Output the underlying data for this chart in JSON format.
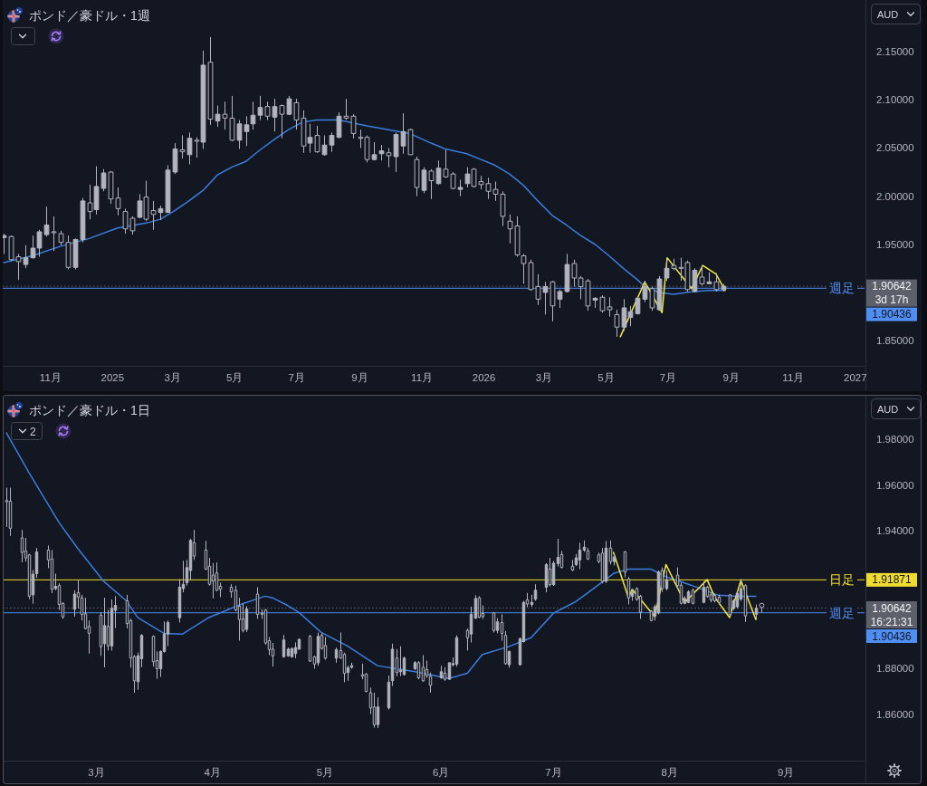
{
  "chart_data": [
    {
      "type": "candlestick",
      "title": "ポンド／豪ドル・1週",
      "ylabel": "AUD",
      "color": "#b2b5be",
      "x": [
        "2024-09-16",
        "2024-09-23",
        "2024-09-30",
        "2024-10-07",
        "2024-10-14",
        "2024-10-21",
        "2024-10-28",
        "2024-11-04",
        "2024-11-11",
        "2024-11-18",
        "2024-11-25",
        "2024-12-02",
        "2024-12-09",
        "2024-12-16",
        "2024-12-23",
        "2024-12-30",
        "2025-01-06",
        "2025-01-13",
        "2025-01-20",
        "2025-01-27",
        "2025-02-03",
        "2025-02-10",
        "2025-02-17",
        "2025-02-24",
        "2025-03-03",
        "2025-03-10",
        "2025-03-17",
        "2025-03-24",
        "2025-03-31",
        "2025-04-07",
        "2025-04-14",
        "2025-04-21",
        "2025-04-28",
        "2025-05-05",
        "2025-05-12",
        "2025-05-19",
        "2025-05-26",
        "2025-06-02",
        "2025-06-09",
        "2025-06-16",
        "2025-06-23",
        "2025-06-30",
        "2025-07-07",
        "2025-07-14",
        "2025-07-21",
        "2025-07-28",
        "2025-08-04",
        "2025-08-11",
        "2025-08-18",
        "2025-08-25",
        "2025-09-01",
        "2025-09-08",
        "2025-09-15",
        "2025-09-22",
        "2025-09-29",
        "2025-10-06",
        "2025-10-13",
        "2025-10-20",
        "2025-10-27",
        "2025-11-03",
        "2025-11-10",
        "2025-11-17",
        "2025-11-24",
        "2025-12-01",
        "2025-12-08",
        "2025-12-15",
        "2025-12-22",
        "2025-12-29",
        "2026-01-05",
        "2026-01-12",
        "2026-01-19",
        "2026-01-26",
        "2026-02-02",
        "2026-02-09",
        "2026-02-16",
        "2026-02-23",
        "2026-03-02",
        "2026-03-09",
        "2026-03-16",
        "2026-03-23",
        "2026-03-30",
        "2026-04-06",
        "2026-04-13",
        "2026-04-20",
        "2026-04-27",
        "2026-05-04",
        "2026-05-11",
        "2026-05-18",
        "2026-05-25",
        "2026-06-01",
        "2026-06-08",
        "2026-06-15",
        "2026-06-22",
        "2026-06-29",
        "2026-07-06",
        "2026-07-13",
        "2026-07-20",
        "2026-07-27",
        "2026-08-03",
        "2026-08-10",
        "2026-08-17",
        "2026-08-24"
      ],
      "ohlc": [
        [
          1.957,
          1.961,
          1.94,
          1.959
        ],
        [
          1.958,
          1.959,
          1.933,
          1.934
        ],
        [
          1.937,
          1.94,
          1.913,
          1.932
        ],
        [
          1.929,
          1.949,
          1.925,
          1.936
        ],
        [
          1.936,
          1.959,
          1.935,
          1.946
        ],
        [
          1.946,
          1.965,
          1.937,
          1.963
        ],
        [
          1.96,
          1.989,
          1.958,
          1.97
        ],
        [
          1.963,
          1.979,
          1.943,
          1.962
        ],
        [
          1.961,
          1.964,
          1.949,
          1.952
        ],
        [
          1.952,
          1.959,
          1.924,
          1.926
        ],
        [
          1.926,
          1.956,
          1.924,
          1.955
        ],
        [
          1.955,
          1.998,
          1.952,
          1.995
        ],
        [
          1.993,
          2.012,
          1.976,
          1.984
        ],
        [
          1.986,
          2.031,
          1.981,
          2.01
        ],
        [
          2.008,
          2.028,
          2.005,
          2.024
        ],
        [
          2.025,
          2.026,
          1.992,
          1.997
        ],
        [
          1.998,
          2.009,
          1.98,
          1.987
        ],
        [
          1.984,
          1.987,
          1.961,
          1.966
        ],
        [
          1.977,
          1.979,
          1.96,
          1.964
        ],
        [
          1.978,
          2.002,
          1.977,
          1.995
        ],
        [
          1.999,
          2.016,
          1.974,
          1.976
        ],
        [
          1.985,
          1.995,
          1.965,
          1.981
        ],
        [
          1.983,
          1.99,
          1.975,
          1.987
        ],
        [
          1.983,
          2.032,
          1.983,
          2.027
        ],
        [
          2.025,
          2.055,
          2.023,
          2.049
        ],
        [
          2.048,
          2.063,
          2.039,
          2.046
        ],
        [
          2.043,
          2.066,
          2.033,
          2.06
        ],
        [
          2.058,
          2.061,
          2.04,
          2.057
        ],
        [
          2.056,
          2.151,
          2.049,
          2.136
        ],
        [
          2.139,
          2.165,
          2.074,
          2.08
        ],
        [
          2.078,
          2.094,
          2.072,
          2.085
        ],
        [
          2.085,
          2.098,
          2.069,
          2.081
        ],
        [
          2.081,
          2.104,
          2.057,
          2.058
        ],
        [
          2.058,
          2.079,
          2.049,
          2.075
        ],
        [
          2.067,
          2.083,
          2.052,
          2.074
        ],
        [
          2.075,
          2.098,
          2.069,
          2.084
        ],
        [
          2.084,
          2.104,
          2.079,
          2.092
        ],
        [
          2.093,
          2.098,
          2.079,
          2.083
        ],
        [
          2.082,
          2.101,
          2.067,
          2.093
        ],
        [
          2.094,
          2.095,
          2.06,
          2.085
        ],
        [
          2.085,
          2.104,
          2.084,
          2.101
        ],
        [
          2.097,
          2.101,
          2.069,
          2.079
        ],
        [
          2.081,
          2.089,
          2.045,
          2.052
        ],
        [
          2.055,
          2.075,
          2.045,
          2.061
        ],
        [
          2.063,
          2.073,
          2.045,
          2.046
        ],
        [
          2.043,
          2.063,
          2.042,
          2.053
        ],
        [
          2.053,
          2.066,
          2.046,
          2.063
        ],
        [
          2.061,
          2.087,
          2.06,
          2.083
        ],
        [
          2.083,
          2.101,
          2.079,
          2.081
        ],
        [
          2.083,
          2.085,
          2.06,
          2.065
        ],
        [
          2.061,
          2.069,
          2.05,
          2.06
        ],
        [
          2.061,
          2.063,
          2.035,
          2.038
        ],
        [
          2.038,
          2.056,
          2.037,
          2.043
        ],
        [
          2.044,
          2.053,
          2.037,
          2.047
        ],
        [
          2.045,
          2.05,
          2.03,
          2.042
        ],
        [
          2.041,
          2.066,
          2.025,
          2.064
        ],
        [
          2.052,
          2.086,
          2.044,
          2.067
        ],
        [
          2.069,
          2.07,
          2.043,
          2.043
        ],
        [
          2.038,
          2.041,
          2.0,
          2.009
        ],
        [
          2.006,
          2.03,
          2.003,
          2.027
        ],
        [
          2.026,
          2.028,
          1.997,
          2.016
        ],
        [
          2.013,
          2.037,
          2.012,
          2.029
        ],
        [
          2.028,
          2.048,
          2.019,
          2.02
        ],
        [
          2.023,
          2.025,
          2.007,
          2.008
        ],
        [
          2.007,
          2.017,
          2.0,
          2.009
        ],
        [
          2.013,
          2.03,
          2.009,
          2.023
        ],
        [
          2.028,
          2.029,
          2.009,
          2.01
        ],
        [
          2.015,
          2.021,
          2.007,
          2.012
        ],
        [
          2.013,
          2.019,
          1.997,
          2.005
        ],
        [
          2.007,
          2.015,
          1.995,
          2.002
        ],
        [
          2.002,
          2.005,
          1.969,
          1.979
        ],
        [
          1.974,
          1.981,
          1.951,
          1.966
        ],
        [
          1.969,
          1.979,
          1.937,
          1.939
        ],
        [
          1.938,
          1.94,
          1.909,
          1.93
        ],
        [
          1.931,
          1.934,
          1.902,
          1.903
        ],
        [
          1.906,
          1.919,
          1.887,
          1.893
        ],
        [
          1.9,
          1.911,
          1.877,
          1.906
        ],
        [
          1.911,
          1.912,
          1.87,
          1.886
        ],
        [
          1.893,
          1.903,
          1.884,
          1.901
        ],
        [
          1.901,
          1.94,
          1.9,
          1.929
        ],
        [
          1.93,
          1.934,
          1.906,
          1.915
        ],
        [
          1.915,
          1.917,
          1.893,
          1.906
        ],
        [
          1.912,
          1.914,
          1.881,
          1.886
        ],
        [
          1.892,
          1.895,
          1.884,
          1.894
        ],
        [
          1.895,
          1.897,
          1.879,
          1.881
        ],
        [
          1.885,
          1.895,
          1.875,
          1.882
        ],
        [
          1.877,
          1.882,
          1.854,
          1.864
        ],
        [
          1.864,
          1.893,
          1.86,
          1.884
        ],
        [
          1.874,
          1.886,
          1.865,
          1.88
        ],
        [
          1.878,
          1.895,
          1.877,
          1.894
        ],
        [
          1.893,
          1.912,
          1.89,
          1.906
        ],
        [
          1.904,
          1.906,
          1.881,
          1.884
        ],
        [
          1.882,
          1.917,
          1.881,
          1.914
        ],
        [
          1.915,
          1.934,
          1.912,
          1.925
        ],
        [
          1.928,
          1.935,
          1.923,
          1.925
        ],
        [
          1.926,
          1.936,
          1.912,
          1.925
        ],
        [
          1.931,
          1.933,
          1.901,
          1.903
        ],
        [
          1.901,
          1.925,
          1.9,
          1.923
        ],
        [
          1.916,
          1.928,
          1.907,
          1.909
        ],
        [
          1.909,
          1.921,
          1.909,
          1.911
        ],
        [
          1.911,
          1.92,
          1.901,
          1.903
        ],
        [
          1.903,
          1.909,
          1.901,
          1.90642
        ]
      ],
      "series": [
        {
          "type": "line",
          "color": "#3b7ddd",
          "x": [
            "2024-09-16",
            "2024-10-14",
            "2024-11-11",
            "2024-12-09",
            "2025-01-06",
            "2025-02-03",
            "2025-02-17",
            "2025-03-03",
            "2025-03-17",
            "2025-03-31",
            "2025-04-14",
            "2025-04-28",
            "2025-05-12",
            "2025-05-26",
            "2025-06-09",
            "2025-06-23",
            "2025-07-07",
            "2025-07-21",
            "2025-08-11",
            "2025-08-25",
            "2025-09-08",
            "2025-09-29",
            "2025-10-20",
            "2025-11-10",
            "2025-11-24",
            "2025-12-15",
            "2025-12-29",
            "2026-01-12",
            "2026-01-26",
            "2026-02-09",
            "2026-02-23",
            "2026-03-09",
            "2026-03-23",
            "2026-04-06",
            "2026-04-20",
            "2026-05-04",
            "2026-05-18",
            "2026-06-01",
            "2026-06-08",
            "2026-06-22",
            "2026-07-06",
            "2026-07-27",
            "2026-08-10",
            "2026-08-24"
          ],
          "values": [
            1.931,
            1.938,
            1.948,
            1.956,
            1.967,
            1.972,
            1.976,
            1.985,
            1.995,
            2.006,
            2.022,
            2.03,
            2.036,
            2.048,
            2.059,
            2.069,
            2.077,
            2.079,
            2.079,
            2.076,
            2.073,
            2.069,
            2.065,
            2.055,
            2.049,
            2.044,
            2.038,
            2.032,
            2.023,
            2.011,
            1.995,
            1.98,
            1.97,
            1.959,
            1.95,
            1.938,
            1.925,
            1.913,
            1.906,
            1.9,
            1.898,
            1.901,
            1.902,
            1.902
          ]
        },
        {
          "type": "line",
          "color": "#f5ea3b",
          "x": [
            "2026-05-15",
            "2026-06-08",
            "2026-06-25",
            "2026-06-30",
            "2026-07-24",
            "2026-08-04",
            "2026-08-17",
            "2026-08-26"
          ],
          "values": [
            1.854,
            1.911,
            1.879,
            1.936,
            1.904,
            1.928,
            1.919,
            1.902
          ]
        }
      ],
      "xlim": [
        "2024-09-15",
        "2027-01-10"
      ],
      "xticks": [
        {
          "value": "2024-11-01",
          "label": "11月"
        },
        {
          "value": "2025-01-01",
          "label": "2025"
        },
        {
          "value": "2025-03-01",
          "label": "3月"
        },
        {
          "value": "2025-05-01",
          "label": "5月"
        },
        {
          "value": "2025-07-01",
          "label": "7月"
        },
        {
          "value": "2025-09-01",
          "label": "9月"
        },
        {
          "value": "2025-11-01",
          "label": "11月"
        },
        {
          "value": "2026-01-01",
          "label": "2026"
        },
        {
          "value": "2026-03-01",
          "label": "3月"
        },
        {
          "value": "2026-05-01",
          "label": "5月"
        },
        {
          "value": "2026-07-01",
          "label": "7月"
        },
        {
          "value": "2026-09-01",
          "label": "9月"
        },
        {
          "value": "2026-11-01",
          "label": "11月"
        },
        {
          "value": "2027-01-01",
          "label": "2027"
        }
      ],
      "ylim": [
        1.8238,
        2.2036
      ],
      "yticks": [
        {
          "value": 1.85,
          "label": "1.85000"
        },
        {
          "value": 1.95,
          "label": "1.95000"
        },
        {
          "value": 2.0,
          "label": "2.00000"
        },
        {
          "value": 2.05,
          "label": "2.05000"
        },
        {
          "value": 2.1,
          "label": "2.10000"
        },
        {
          "value": 2.15,
          "label": "2.15000"
        }
      ],
      "ref_lines": [
        {
          "axis": "y",
          "value": 1.90642,
          "color": "#5d606b",
          "line_style": "dotted"
        },
        {
          "axis": "y",
          "value": 1.90436,
          "label": "週足",
          "color": "#4f8ef2"
        }
      ],
      "annotations": [
        "1.90642",
        "1.90436",
        "3d 17h"
      ]
    },
    {
      "type": "candlestick",
      "title": "ポンド／豪ドル・1日",
      "ylabel": "AUD",
      "color": "#b2b5be",
      "x": [
        "2026-02-05",
        "2026-02-06",
        "2026-02-09",
        "2026-02-10",
        "2026-02-11",
        "2026-02-12",
        "2026-02-13",
        "2026-02-16",
        "2026-02-17",
        "2026-02-18",
        "2026-02-19",
        "2026-02-20",
        "2026-02-23",
        "2026-02-24",
        "2026-02-25",
        "2026-02-26",
        "2026-02-27",
        "2026-03-02",
        "2026-03-03",
        "2026-03-04",
        "2026-03-05",
        "2026-03-06",
        "2026-03-09",
        "2026-03-10",
        "2026-03-11",
        "2026-03-12",
        "2026-03-13",
        "2026-03-16",
        "2026-03-17",
        "2026-03-18",
        "2026-03-19",
        "2026-03-20",
        "2026-03-23",
        "2026-03-24",
        "2026-03-25",
        "2026-03-26",
        "2026-03-27",
        "2026-03-30",
        "2026-03-31",
        "2026-04-01",
        "2026-04-02",
        "2026-04-03",
        "2026-04-06",
        "2026-04-07",
        "2026-04-08",
        "2026-04-09",
        "2026-04-10",
        "2026-04-13",
        "2026-04-14",
        "2026-04-15",
        "2026-04-16",
        "2026-04-17",
        "2026-04-20",
        "2026-04-21",
        "2026-04-22",
        "2026-04-23",
        "2026-04-24",
        "2026-04-27",
        "2026-04-28",
        "2026-04-29",
        "2026-04-30",
        "2026-05-01",
        "2026-05-04",
        "2026-05-05",
        "2026-05-06",
        "2026-05-07",
        "2026-05-08",
        "2026-05-11",
        "2026-05-12",
        "2026-05-13",
        "2026-05-14",
        "2026-05-15",
        "2026-05-18",
        "2026-05-19",
        "2026-05-20",
        "2026-05-21",
        "2026-05-22",
        "2026-05-25",
        "2026-05-26",
        "2026-05-27",
        "2026-05-28",
        "2026-05-29",
        "2026-06-01",
        "2026-06-02",
        "2026-06-03",
        "2026-06-04",
        "2026-06-05",
        "2026-06-08",
        "2026-06-09",
        "2026-06-10",
        "2026-06-11",
        "2026-06-12",
        "2026-06-15",
        "2026-06-16",
        "2026-06-17",
        "2026-06-18",
        "2026-06-19",
        "2026-06-22",
        "2026-06-23",
        "2026-06-24",
        "2026-06-25",
        "2026-06-26",
        "2026-06-29",
        "2026-06-30",
        "2026-07-01",
        "2026-07-02",
        "2026-07-03",
        "2026-07-06",
        "2026-07-07",
        "2026-07-08",
        "2026-07-09",
        "2026-07-10",
        "2026-07-13",
        "2026-07-14",
        "2026-07-15",
        "2026-07-16",
        "2026-07-17",
        "2026-07-20",
        "2026-07-21",
        "2026-07-22",
        "2026-07-23",
        "2026-07-24",
        "2026-07-27",
        "2026-07-28",
        "2026-07-29",
        "2026-07-30",
        "2026-07-31",
        "2026-08-03",
        "2026-08-04",
        "2026-08-05",
        "2026-08-06",
        "2026-08-07",
        "2026-08-10",
        "2026-08-11",
        "2026-08-12",
        "2026-08-13",
        "2026-08-14",
        "2026-08-17",
        "2026-08-18",
        "2026-08-19",
        "2026-08-20",
        "2026-08-21",
        "2026-08-24"
      ],
      "ohlc": [
        [
          1.9533,
          1.9589,
          1.9418,
          1.9528
        ],
        [
          1.953,
          1.9589,
          1.9379,
          1.9412
        ],
        [
          1.937,
          1.9405,
          1.9264,
          1.9307
        ],
        [
          1.9313,
          1.937,
          1.9267,
          1.9283
        ],
        [
          1.9296,
          1.93,
          1.9103,
          1.9116
        ],
        [
          1.9122,
          1.923,
          1.9083,
          1.9212
        ],
        [
          1.9214,
          1.9326,
          1.9195,
          1.9309
        ],
        [
          1.9317,
          1.9337,
          1.9238,
          1.9274
        ],
        [
          1.9278,
          1.9317,
          1.9129,
          1.9146
        ],
        [
          1.9149,
          1.9214,
          1.9142,
          1.9159
        ],
        [
          1.9162,
          1.9172,
          1.9056,
          1.908
        ],
        [
          1.9085,
          1.9089,
          1.9017,
          1.9026
        ],
        [
          1.9059,
          1.9142,
          1.9027,
          1.9125
        ],
        [
          1.9132,
          1.9188,
          1.9063,
          1.9112
        ],
        [
          1.9109,
          1.9122,
          1.901,
          1.9037
        ],
        [
          1.9039,
          1.9109,
          1.8971,
          1.8975
        ],
        [
          1.8984,
          1.901,
          1.8866,
          1.8954
        ],
        [
          1.9033,
          1.9046,
          1.8856,
          1.8896
        ],
        [
          1.8909,
          1.9109,
          1.8806,
          1.8988
        ],
        [
          1.8984,
          1.9056,
          1.8879,
          1.8899
        ],
        [
          1.8899,
          1.9102,
          1.8879,
          1.9063
        ],
        [
          1.9054,
          1.9116,
          1.8977,
          1.9076
        ],
        [
          1.9096,
          1.9122,
          1.8975,
          1.8997
        ],
        [
          1.901,
          1.9017,
          1.8804,
          1.8846
        ],
        [
          1.8853,
          1.8859,
          1.8695,
          1.8747
        ],
        [
          1.8743,
          1.887,
          1.8708,
          1.8856
        ],
        [
          1.8843,
          1.8951,
          1.8806,
          1.8945
        ],
        [
          1.8941,
          1.8945,
          1.8809,
          1.883
        ],
        [
          1.8835,
          1.8875,
          1.8756,
          1.88
        ],
        [
          1.88,
          1.8879,
          1.8764,
          1.8875
        ],
        [
          1.8875,
          1.9006,
          1.887,
          1.8951
        ],
        [
          1.8951,
          1.901,
          1.8898,
          1.9001
        ],
        [
          1.9022,
          1.9191,
          1.9001,
          1.9155
        ],
        [
          1.9149,
          1.927,
          1.9133,
          1.9168
        ],
        [
          1.9175,
          1.9274,
          1.9162,
          1.9241
        ],
        [
          1.9228,
          1.9366,
          1.9188,
          1.9359
        ],
        [
          1.9349,
          1.9405,
          1.9274,
          1.9291
        ],
        [
          1.9317,
          1.9357,
          1.923,
          1.9234
        ],
        [
          1.9247,
          1.9283,
          1.9162,
          1.9168
        ],
        [
          1.9208,
          1.926,
          1.9106,
          1.9182
        ],
        [
          1.9217,
          1.9263,
          1.9138,
          1.9142
        ],
        [
          1.9159,
          1.9175,
          1.9112,
          1.9146
        ],
        [
          1.9155,
          1.9168,
          1.9109,
          1.9135
        ],
        [
          1.9142,
          1.9162,
          1.905,
          1.9056
        ],
        [
          1.9072,
          1.9109,
          1.8922,
          1.9014
        ],
        [
          1.9017,
          1.9083,
          1.8958,
          1.8967
        ],
        [
          1.8971,
          1.9072,
          1.896,
          1.906
        ],
        [
          1.9125,
          1.9155,
          1.9017,
          1.9037
        ],
        [
          1.9041,
          1.9059,
          1.9017,
          1.9039
        ],
        [
          1.9056,
          1.9059,
          1.8905,
          1.8912
        ],
        [
          1.8922,
          1.8938,
          1.8859,
          1.8883
        ],
        [
          1.8885,
          1.8912,
          1.8809,
          1.8856
        ],
        [
          1.8852,
          1.8947,
          1.8848,
          1.8925
        ],
        [
          1.8856,
          1.8892,
          1.8852,
          1.8885
        ],
        [
          1.8852,
          1.8892,
          1.8848,
          1.8888
        ],
        [
          1.8866,
          1.8914,
          1.8846,
          1.8892
        ],
        [
          1.8885,
          1.8931,
          1.8883,
          1.8928
        ],
        [
          1.8942,
          1.8947,
          1.883,
          1.8833
        ],
        [
          1.8852,
          1.8856,
          1.88,
          1.882
        ],
        [
          1.8826,
          1.8958,
          1.8813,
          1.8941
        ],
        [
          1.8945,
          1.8954,
          1.8883,
          1.8888
        ],
        [
          1.8901,
          1.8938,
          1.8839,
          1.8846
        ],
        [
          1.8846,
          1.8892,
          1.8826,
          1.8883
        ],
        [
          1.8879,
          1.8958,
          1.8843,
          1.8846
        ],
        [
          1.8862,
          1.887,
          1.8741,
          1.878
        ],
        [
          1.8783,
          1.8813,
          1.8747,
          1.8804
        ],
        [
          1.8806,
          1.8826,
          1.88,
          1.8813
        ],
        [
          1.8774,
          1.8822,
          1.8754,
          1.8767
        ],
        [
          1.8777,
          1.878,
          1.8697,
          1.8701
        ],
        [
          1.8695,
          1.8717,
          1.8602,
          1.8629
        ],
        [
          1.8633,
          1.8695,
          1.8543,
          1.8556
        ],
        [
          1.8556,
          1.8675,
          1.8541,
          1.8633
        ],
        [
          1.8629,
          1.877,
          1.8622,
          1.8741
        ],
        [
          1.8747,
          1.8909,
          1.8725,
          1.8885
        ],
        [
          1.8846,
          1.8885,
          1.8767,
          1.8783
        ],
        [
          1.8787,
          1.8898,
          1.8767,
          1.8793
        ],
        [
          1.8774,
          1.8853,
          1.877,
          1.8846
        ],
        [
          1.88,
          1.8833,
          1.8793,
          1.8826
        ],
        [
          1.8826,
          1.8833,
          1.8754,
          1.876
        ],
        [
          1.8806,
          1.8859,
          1.8743,
          1.8747
        ],
        [
          1.8796,
          1.8835,
          1.876,
          1.877
        ],
        [
          1.8767,
          1.8783,
          1.8695,
          1.8727
        ],
        [
          1.876,
          1.8813,
          1.8756,
          1.8787
        ],
        [
          1.878,
          1.8806,
          1.8747,
          1.8754
        ],
        [
          1.8754,
          1.8826,
          1.8751,
          1.8826
        ],
        [
          1.8817,
          1.8849,
          1.8809,
          1.8822
        ],
        [
          1.882,
          1.8945,
          1.8809,
          1.8935
        ],
        [
          1.8967,
          1.8975,
          1.8879,
          1.8935
        ],
        [
          1.8951,
          1.907,
          1.8914,
          1.9037
        ],
        [
          1.902,
          1.912,
          1.9017,
          1.9106
        ],
        [
          1.9109,
          1.9116,
          1.902,
          1.9024
        ],
        [
          1.904,
          1.9076,
          1.9017,
          1.9028
        ],
        [
          1.9043,
          1.9046,
          1.8958,
          1.8967
        ],
        [
          1.8967,
          1.902,
          1.8954,
          1.9004
        ],
        [
          1.9001,
          1.9037,
          1.8922,
          1.8954
        ],
        [
          1.8945,
          1.8964,
          1.8817,
          1.8822
        ],
        [
          1.8817,
          1.8879,
          1.8804,
          1.8875
        ],
        [
          1.8817,
          1.8935,
          1.8813,
          1.8931
        ],
        [
          1.8918,
          1.9096,
          1.8914,
          1.9089
        ],
        [
          1.91,
          1.913,
          1.9068,
          1.9082
        ],
        [
          1.908,
          1.9122,
          1.907,
          1.9089
        ],
        [
          1.9103,
          1.9168,
          1.9096,
          1.9142
        ],
        [
          1.9155,
          1.926,
          1.9133,
          1.9254
        ],
        [
          1.9234,
          1.9283,
          1.9159,
          1.9166
        ],
        [
          1.9166,
          1.927,
          1.9161,
          1.926
        ],
        [
          1.9258,
          1.9366,
          1.9245,
          1.9285
        ],
        [
          1.9298,
          1.9313,
          1.9238,
          1.9241
        ],
        [
          1.9247,
          1.9274,
          1.9225,
          1.923
        ],
        [
          1.9254,
          1.93,
          1.9247,
          1.9283
        ],
        [
          1.9274,
          1.9349,
          1.9234,
          1.9317
        ],
        [
          1.9317,
          1.9359,
          1.9309,
          1.933
        ],
        [
          1.9313,
          1.9326,
          1.9274,
          1.9278
        ],
        [
          1.9296,
          1.9306,
          1.926,
          1.9267
        ],
        [
          1.9304,
          1.9326,
          1.9172,
          1.9181
        ],
        [
          1.9181,
          1.9356,
          1.9174,
          1.9326
        ],
        [
          1.9326,
          1.9359,
          1.9254,
          1.9267
        ],
        [
          1.9267,
          1.93,
          1.925,
          1.9287
        ],
        [
          1.9309,
          1.9313,
          1.9198,
          1.9221
        ],
        [
          1.9191,
          1.9199,
          1.908,
          1.9109
        ],
        [
          1.9116,
          1.9149,
          1.9096,
          1.9135
        ],
        [
          1.9149,
          1.9155,
          1.9096,
          1.9102
        ],
        [
          1.9116,
          1.9122,
          1.9017,
          1.9046
        ],
        [
          1.905,
          1.9056,
          1.9006,
          1.901
        ],
        [
          1.903,
          1.908,
          1.901,
          1.907
        ],
        [
          1.9043,
          1.9228,
          1.9037,
          1.9221
        ],
        [
          1.9228,
          1.9241,
          1.9135,
          1.9149
        ],
        [
          1.9149,
          1.9228,
          1.9142,
          1.9188
        ],
        [
          1.9208,
          1.9241,
          1.9149,
          1.9162
        ],
        [
          1.9164,
          1.9175,
          1.908,
          1.9085
        ],
        [
          1.9085,
          1.9116,
          1.908,
          1.9106
        ],
        [
          1.9089,
          1.9142,
          1.9085,
          1.9135
        ],
        [
          1.9142,
          1.9149,
          1.908,
          1.9085
        ],
        [
          1.9089,
          1.9181,
          1.9085,
          1.9155
        ],
        [
          1.9155,
          1.9162,
          1.9109,
          1.9116
        ],
        [
          1.9122,
          1.9133,
          1.9089,
          1.9099
        ],
        [
          1.9119,
          1.9125,
          1.9089,
          1.9096
        ],
        [
          1.9112,
          1.9122,
          1.908,
          1.9089
        ],
        [
          1.9122,
          1.9125,
          1.903,
          1.9037
        ],
        [
          1.9063,
          1.9103,
          1.9056,
          1.9096
        ],
        [
          1.907,
          1.9142,
          1.9063,
          1.9129
        ],
        [
          1.9103,
          1.9191,
          1.9096,
          1.9149
        ],
        [
          1.9162,
          1.9168,
          1.9004,
          1.903
        ],
        [
          1.9037,
          1.908,
          1.9014,
          1.90642
        ]
      ],
      "series": [
        {
          "type": "line",
          "color": "#3b7ddd",
          "x": [
            "2026-02-05",
            "2026-02-11",
            "2026-02-19",
            "2026-02-24",
            "2026-03-03",
            "2026-03-09",
            "2026-03-12",
            "2026-03-19",
            "2026-03-24",
            "2026-03-31",
            "2026-04-06",
            "2026-04-09",
            "2026-04-15",
            "2026-04-17",
            "2026-04-21",
            "2026-04-24",
            "2026-04-30",
            "2026-05-07",
            "2026-05-15",
            "2026-05-25",
            "2026-06-03",
            "2026-06-08",
            "2026-06-12",
            "2026-06-19",
            "2026-06-25",
            "2026-07-01",
            "2026-07-07",
            "2026-07-10",
            "2026-07-17",
            "2026-07-21",
            "2026-07-27",
            "2026-07-31",
            "2026-08-06",
            "2026-08-14",
            "2026-08-19",
            "2026-08-24"
          ],
          "values": [
            1.9828,
            1.9655,
            1.9438,
            1.9325,
            1.918,
            1.9096,
            1.9023,
            1.8954,
            1.8951,
            1.9023,
            1.9063,
            1.9083,
            1.9116,
            1.9109,
            1.9076,
            1.9046,
            1.8958,
            1.8899,
            1.8813,
            1.8787,
            1.8757,
            1.878,
            1.8862,
            1.8896,
            1.8935,
            1.9042,
            1.9093,
            1.9129,
            1.9215,
            1.9234,
            1.9234,
            1.9201,
            1.9168,
            1.912,
            1.9116,
            1.9116
          ]
        },
        {
          "type": "line",
          "color": "#f5ea3b",
          "x": [
            "2026-07-17",
            "2026-07-21",
            "2026-07-22",
            "2026-07-28",
            "2026-07-31",
            "2026-08-05",
            "2026-08-11",
            "2026-08-13",
            "2026-08-17",
            "2026-08-20",
            "2026-08-24"
          ],
          "values": [
            1.9307,
            1.9109,
            1.9146,
            1.9027,
            1.9254,
            1.9089,
            1.9188,
            1.9112,
            1.9023,
            1.9185,
            1.9014
          ]
        }
      ],
      "xlim": [
        "2026-02-04",
        "2026-09-22"
      ],
      "xticks": [
        {
          "value": "2026-03-01",
          "label": "3月"
        },
        {
          "value": "2026-04-01",
          "label": "4月"
        },
        {
          "value": "2026-05-01",
          "label": "5月"
        },
        {
          "value": "2026-06-01",
          "label": "6月"
        },
        {
          "value": "2026-07-01",
          "label": "7月"
        },
        {
          "value": "2026-08-01",
          "label": "8月"
        },
        {
          "value": "2026-09-01",
          "label": "9月"
        }
      ],
      "ylim": [
        1.8399,
        1.999
      ],
      "yticks": [
        {
          "value": 1.86,
          "label": "1.86000"
        },
        {
          "value": 1.88,
          "label": "1.88000"
        },
        {
          "value": 1.94,
          "label": "1.94000"
        },
        {
          "value": 1.96,
          "label": "1.96000"
        },
        {
          "value": 1.98,
          "label": "1.98000"
        }
      ],
      "ref_lines": [
        {
          "axis": "y",
          "value": 1.90642,
          "color": "#5d606b",
          "line_style": "dotted"
        },
        {
          "axis": "y",
          "value": 1.91871,
          "label": "日足",
          "color": "#f0dc2e"
        },
        {
          "axis": "y",
          "value": 1.90436,
          "label": "週足",
          "color": "#4f8ef2"
        }
      ],
      "annotations": [
        "1.90642",
        "1.91871",
        "1.90436",
        "16:21:31",
        "2"
      ]
    }
  ]
}
